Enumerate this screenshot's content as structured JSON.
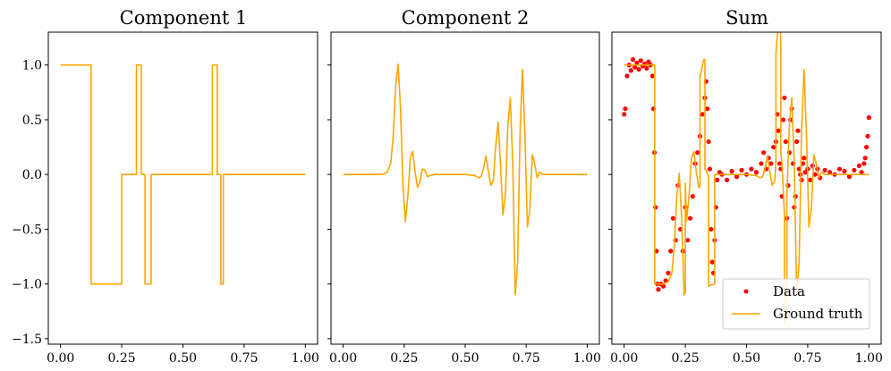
{
  "chart_data": [
    {
      "type": "line",
      "title": "Component 1",
      "xlabel": "",
      "ylabel": "",
      "xlim": [
        -0.05,
        1.05
      ],
      "ylim": [
        -1.55,
        1.3
      ],
      "xticks": [
        0.0,
        0.25,
        0.5,
        0.75,
        1.0
      ],
      "xtick_labels": [
        "0.00",
        "0.25",
        "0.50",
        "0.75",
        "1.00"
      ],
      "yticks": [
        1.0,
        0.5,
        0.0,
        -0.5,
        -1.0,
        -1.5
      ],
      "ytick_labels": [
        "1.0",
        "0.5",
        "0.0",
        "−0.5",
        "−1.0",
        "−1.5"
      ],
      "series": [
        {
          "color": "#ffa500",
          "x": [
            0.0,
            0.125,
            0.125,
            0.25,
            0.25,
            0.31,
            0.31,
            0.33,
            0.33,
            0.345,
            0.345,
            0.37,
            0.37,
            0.62,
            0.62,
            0.64,
            0.64,
            0.655,
            0.655,
            0.665,
            0.665,
            1.0
          ],
          "y": [
            1.0,
            1.0,
            -1.0,
            -1.0,
            0.0,
            0.0,
            1.0,
            1.0,
            0.0,
            0.0,
            -1.0,
            -1.0,
            0.0,
            0.0,
            1.0,
            1.0,
            0.0,
            0.0,
            -1.0,
            -1.0,
            0.0,
            0.0
          ]
        }
      ]
    },
    {
      "type": "line",
      "title": "Component 2",
      "xlabel": "",
      "ylabel": "",
      "xlim": [
        -0.05,
        1.05
      ],
      "ylim": [
        -1.55,
        1.3
      ],
      "xticks": [
        0.0,
        0.25,
        0.5,
        0.75,
        1.0
      ],
      "xtick_labels": [
        "0.00",
        "0.25",
        "0.50",
        "0.75",
        "1.00"
      ],
      "yticks": [
        1.0,
        0.5,
        0.0,
        -0.5,
        -1.0,
        -1.5
      ],
      "ytick_labels": [
        "",
        "",
        "",
        "",
        "",
        ""
      ],
      "series": [
        {
          "color": "#ffa500",
          "x": [
            0.0,
            0.16,
            0.18,
            0.195,
            0.205,
            0.215,
            0.225,
            0.235,
            0.245,
            0.255,
            0.265,
            0.275,
            0.285,
            0.295,
            0.305,
            0.315,
            0.325,
            0.335,
            0.345,
            0.355,
            0.375,
            0.4,
            0.5,
            0.54,
            0.555,
            0.565,
            0.575,
            0.585,
            0.595,
            0.605,
            0.615,
            0.625,
            0.635,
            0.645,
            0.655,
            0.665,
            0.675,
            0.685,
            0.695,
            0.705,
            0.715,
            0.725,
            0.735,
            0.745,
            0.755,
            0.765,
            0.775,
            0.785,
            0.795,
            0.805,
            0.82,
            1.0
          ],
          "y": [
            0.0,
            0.0,
            0.02,
            0.1,
            0.35,
            0.8,
            1.01,
            0.6,
            -0.1,
            -0.43,
            -0.2,
            0.15,
            0.21,
            0.02,
            -0.12,
            -0.06,
            0.05,
            0.04,
            -0.02,
            -0.01,
            0.0,
            0.0,
            0.0,
            -0.01,
            -0.03,
            -0.02,
            0.05,
            0.17,
            0.03,
            -0.1,
            -0.06,
            0.25,
            0.48,
            0.08,
            -0.37,
            -0.18,
            0.45,
            0.7,
            0.1,
            -1.1,
            -0.8,
            0.4,
            0.96,
            0.35,
            -0.48,
            -0.32,
            0.18,
            0.1,
            -0.03,
            0.02,
            0.0,
            0.0
          ]
        }
      ]
    },
    {
      "type": "scatter",
      "title": "Sum",
      "xlabel": "",
      "ylabel": "",
      "xlim": [
        -0.05,
        1.05
      ],
      "ylim": [
        -1.55,
        1.3
      ],
      "xticks": [
        0.0,
        0.25,
        0.5,
        0.75,
        1.0
      ],
      "xtick_labels": [
        "0.00",
        "0.25",
        "0.50",
        "0.75",
        "1.00"
      ],
      "yticks": [
        1.0,
        0.5,
        0.0,
        -0.5,
        -1.0,
        -1.5
      ],
      "ytick_labels": [
        "",
        "",
        "",
        "",
        "",
        ""
      ],
      "legend": {
        "placement": "lower-right",
        "entries": [
          "Data",
          "Ground truth"
        ]
      },
      "series": [
        {
          "name": "Data",
          "kind": "scatter",
          "color": "#ff0000",
          "x": [
            0.0,
            0.005,
            0.012,
            0.02,
            0.028,
            0.036,
            0.044,
            0.052,
            0.06,
            0.068,
            0.076,
            0.084,
            0.092,
            0.1,
            0.108,
            0.116,
            0.12,
            0.124,
            0.128,
            0.132,
            0.136,
            0.14,
            0.15,
            0.16,
            0.17,
            0.18,
            0.19,
            0.2,
            0.21,
            0.22,
            0.23,
            0.24,
            0.25,
            0.26,
            0.27,
            0.28,
            0.29,
            0.3,
            0.31,
            0.32,
            0.33,
            0.335,
            0.34,
            0.345,
            0.35,
            0.355,
            0.36,
            0.365,
            0.37,
            0.375,
            0.38,
            0.39,
            0.4,
            0.42,
            0.44,
            0.46,
            0.48,
            0.5,
            0.52,
            0.54,
            0.56,
            0.57,
            0.58,
            0.59,
            0.6,
            0.61,
            0.62,
            0.625,
            0.63,
            0.635,
            0.64,
            0.645,
            0.65,
            0.655,
            0.66,
            0.665,
            0.67,
            0.675,
            0.68,
            0.685,
            0.69,
            0.695,
            0.7,
            0.705,
            0.71,
            0.715,
            0.72,
            0.725,
            0.73,
            0.735,
            0.74,
            0.75,
            0.76,
            0.77,
            0.78,
            0.79,
            0.8,
            0.82,
            0.84,
            0.86,
            0.88,
            0.9,
            0.92,
            0.94,
            0.96,
            0.97,
            0.98,
            0.985,
            0.99,
            0.995,
            1.0
          ],
          "y": [
            0.55,
            0.6,
            0.9,
            1.0,
            0.95,
            1.05,
            0.98,
            1.02,
            0.96,
            1.04,
            0.99,
            1.01,
            0.97,
            1.03,
            1.0,
            0.9,
            0.6,
            0.2,
            -0.3,
            -0.7,
            -1.0,
            -1.05,
            -1.0,
            -1.02,
            -0.97,
            -0.9,
            -0.7,
            -0.4,
            -0.6,
            -0.1,
            -0.5,
            -0.7,
            -0.3,
            -0.6,
            -0.4,
            -0.2,
            0.1,
            0.2,
            0.35,
            0.55,
            0.7,
            0.85,
            0.6,
            0.3,
            0.05,
            -0.5,
            -0.8,
            -0.9,
            -0.6,
            -0.3,
            -0.05,
            0.02,
            0.0,
            -0.05,
            0.03,
            -0.02,
            0.04,
            0.0,
            0.05,
            0.02,
            0.1,
            0.2,
            0.05,
            0.15,
            0.1,
            0.25,
            0.3,
            0.55,
            0.4,
            0.1,
            0.05,
            -0.2,
            0.5,
            0.7,
            0.3,
            -0.4,
            -0.1,
            0.2,
            0.5,
            0.6,
            0.1,
            -0.3,
            -0.2,
            0.3,
            0.4,
            0.05,
            0.0,
            -0.05,
            0.1,
            0.15,
            0.02,
            0.05,
            -0.05,
            0.08,
            0.0,
            0.05,
            -0.03,
            0.04,
            0.02,
            0.0,
            0.05,
            0.03,
            -0.02,
            0.04,
            0.08,
            0.02,
            0.1,
            0.15,
            0.25,
            0.35,
            0.52
          ]
        },
        {
          "name": "Ground truth",
          "kind": "line",
          "color": "#ffa500",
          "x": [
            0.0,
            0.125,
            0.125,
            0.16,
            0.18,
            0.195,
            0.205,
            0.215,
            0.225,
            0.235,
            0.245,
            0.25,
            0.25,
            0.255,
            0.265,
            0.275,
            0.285,
            0.295,
            0.305,
            0.31,
            0.31,
            0.315,
            0.325,
            0.33,
            0.33,
            0.335,
            0.345,
            0.345,
            0.355,
            0.37,
            0.37,
            0.375,
            0.4,
            0.5,
            0.54,
            0.555,
            0.565,
            0.575,
            0.585,
            0.595,
            0.605,
            0.615,
            0.62,
            0.62,
            0.625,
            0.635,
            0.64,
            0.64,
            0.645,
            0.655,
            0.655,
            0.665,
            0.665,
            0.675,
            0.685,
            0.695,
            0.705,
            0.715,
            0.725,
            0.735,
            0.745,
            0.755,
            0.765,
            0.775,
            0.785,
            0.795,
            0.805,
            0.82,
            1.0
          ],
          "y": [
            1.0,
            1.0,
            -1.0,
            -1.0,
            -0.98,
            -0.9,
            -0.65,
            -0.2,
            0.01,
            -0.4,
            -1.1,
            -1.08,
            -0.08,
            -0.43,
            -0.2,
            0.15,
            0.21,
            0.02,
            -0.12,
            -0.11,
            0.89,
            0.94,
            1.05,
            1.05,
            0.05,
            0.04,
            -0.02,
            -1.02,
            -1.01,
            -1.0,
            0.0,
            0.0,
            0.0,
            0.0,
            -0.01,
            -0.03,
            -0.02,
            0.05,
            0.17,
            0.03,
            -0.1,
            -0.06,
            0.1,
            1.1,
            1.25,
            1.48,
            1.2,
            0.2,
            0.1,
            -0.37,
            -1.37,
            -1.18,
            -0.18,
            0.45,
            0.7,
            0.1,
            -1.1,
            -0.8,
            0.4,
            0.96,
            0.35,
            -0.48,
            -0.32,
            0.18,
            0.1,
            -0.03,
            0.02,
            0.0,
            0.0
          ]
        }
      ]
    }
  ]
}
